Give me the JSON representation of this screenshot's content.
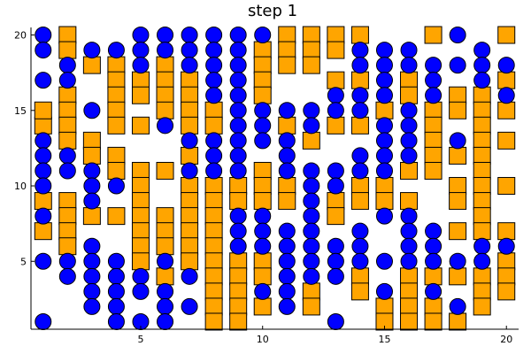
{
  "chart_data": {
    "type": "scatter",
    "title": "step 1",
    "xlabel": "",
    "ylabel": "",
    "xlim": [
      0.5,
      20.5
    ],
    "ylim": [
      0.5,
      20.5
    ],
    "xticks": [
      5,
      10,
      15,
      20
    ],
    "yticks": [
      5,
      10,
      15,
      20
    ],
    "grid": false,
    "legend": "none",
    "series": [
      {
        "marker": "square",
        "color": "#FFA500",
        "points": [
          [
            1,
            14
          ],
          [
            1,
            15
          ],
          [
            1,
            9
          ],
          [
            1,
            7
          ],
          [
            2,
            20
          ],
          [
            2,
            19
          ],
          [
            2,
            16
          ],
          [
            2,
            15
          ],
          [
            2,
            14
          ],
          [
            2,
            13
          ],
          [
            2,
            9
          ],
          [
            2,
            8
          ],
          [
            2,
            7
          ],
          [
            2,
            6
          ],
          [
            3,
            18
          ],
          [
            3,
            13
          ],
          [
            3,
            12
          ],
          [
            3,
            8
          ],
          [
            4,
            18
          ],
          [
            4,
            17
          ],
          [
            4,
            16
          ],
          [
            4,
            15
          ],
          [
            4,
            14
          ],
          [
            4,
            12
          ],
          [
            4,
            11
          ],
          [
            4,
            8
          ],
          [
            5,
            17
          ],
          [
            5,
            16
          ],
          [
            5,
            14
          ],
          [
            5,
            11
          ],
          [
            5,
            10
          ],
          [
            5,
            9
          ],
          [
            5,
            8
          ],
          [
            5,
            7
          ],
          [
            5,
            6
          ],
          [
            5,
            5
          ],
          [
            6,
            18
          ],
          [
            6,
            17
          ],
          [
            6,
            16
          ],
          [
            6,
            15
          ],
          [
            6,
            11
          ],
          [
            6,
            8
          ],
          [
            6,
            7
          ],
          [
            6,
            6
          ],
          [
            6,
            4
          ],
          [
            7,
            17
          ],
          [
            7,
            16
          ],
          [
            7,
            15
          ],
          [
            7,
            14
          ],
          [
            7,
            12
          ],
          [
            7,
            10
          ],
          [
            7,
            9
          ],
          [
            7,
            8
          ],
          [
            7,
            7
          ],
          [
            7,
            6
          ],
          [
            7,
            5
          ],
          [
            8,
            15
          ],
          [
            8,
            14
          ],
          [
            8,
            10
          ],
          [
            8,
            9
          ],
          [
            8,
            8
          ],
          [
            8,
            7
          ],
          [
            8,
            6
          ],
          [
            8,
            5
          ],
          [
            8,
            4
          ],
          [
            8,
            3
          ],
          [
            8,
            2
          ],
          [
            8,
            1
          ],
          [
            9,
            10
          ],
          [
            9,
            9
          ],
          [
            9,
            5
          ],
          [
            9,
            4
          ],
          [
            9,
            3
          ],
          [
            9,
            2
          ],
          [
            9,
            1
          ],
          [
            10,
            19
          ],
          [
            10,
            18
          ],
          [
            10,
            17
          ],
          [
            10,
            16
          ],
          [
            10,
            11
          ],
          [
            10,
            10
          ],
          [
            10,
            9
          ],
          [
            10,
            5
          ],
          [
            10,
            4
          ],
          [
            10,
            2
          ],
          [
            11,
            20
          ],
          [
            11,
            19
          ],
          [
            11,
            18
          ],
          [
            11,
            14
          ],
          [
            11,
            10
          ],
          [
            11,
            9
          ],
          [
            12,
            20
          ],
          [
            12,
            19
          ],
          [
            12,
            18
          ],
          [
            12,
            13
          ],
          [
            12,
            3
          ],
          [
            12,
            2
          ],
          [
            13,
            20
          ],
          [
            13,
            19
          ],
          [
            13,
            17
          ],
          [
            13,
            14
          ],
          [
            13,
            9
          ],
          [
            13,
            8
          ],
          [
            14,
            20
          ],
          [
            14,
            17
          ],
          [
            14,
            14
          ],
          [
            14,
            10
          ],
          [
            14,
            9
          ],
          [
            14,
            4
          ],
          [
            14,
            3
          ],
          [
            15,
            15
          ],
          [
            15,
            10
          ],
          [
            15,
            9
          ],
          [
            15,
            2
          ],
          [
            15,
            1
          ],
          [
            16,
            17
          ],
          [
            16,
            16
          ],
          [
            16,
            11
          ],
          [
            16,
            9
          ],
          [
            16,
            4
          ],
          [
            16,
            3
          ],
          [
            16,
            2
          ],
          [
            16,
            1
          ],
          [
            17,
            20
          ],
          [
            17,
            15
          ],
          [
            17,
            14
          ],
          [
            17,
            13
          ],
          [
            17,
            12
          ],
          [
            17,
            11
          ],
          [
            17,
            4
          ],
          [
            17,
            2
          ],
          [
            17,
            1
          ],
          [
            18,
            16
          ],
          [
            18,
            15
          ],
          [
            18,
            12
          ],
          [
            18,
            10
          ],
          [
            18,
            9
          ],
          [
            18,
            7
          ],
          [
            18,
            4
          ],
          [
            18,
            1
          ],
          [
            19,
            16
          ],
          [
            19,
            15
          ],
          [
            19,
            14
          ],
          [
            19,
            13
          ],
          [
            19,
            12
          ],
          [
            19,
            11
          ],
          [
            19,
            10
          ],
          [
            19,
            9
          ],
          [
            19,
            8
          ],
          [
            19,
            7
          ],
          [
            19,
            4
          ],
          [
            19,
            3
          ],
          [
            19,
            2
          ],
          [
            20,
            20
          ],
          [
            20,
            17
          ],
          [
            20,
            15
          ],
          [
            20,
            13
          ],
          [
            20,
            10
          ],
          [
            20,
            7
          ],
          [
            20,
            5
          ],
          [
            20,
            4
          ],
          [
            20,
            3
          ]
        ]
      },
      {
        "marker": "circle",
        "color": "#0000FF",
        "points": [
          [
            1,
            20
          ],
          [
            1,
            19
          ],
          [
            1,
            17
          ],
          [
            1,
            13
          ],
          [
            1,
            12
          ],
          [
            1,
            11
          ],
          [
            1,
            10
          ],
          [
            1,
            8
          ],
          [
            1,
            5
          ],
          [
            1,
            1
          ],
          [
            2,
            18
          ],
          [
            2,
            17
          ],
          [
            2,
            12
          ],
          [
            2,
            11
          ],
          [
            2,
            5
          ],
          [
            2,
            4
          ],
          [
            3,
            19
          ],
          [
            3,
            15
          ],
          [
            3,
            11
          ],
          [
            3,
            10
          ],
          [
            3,
            9
          ],
          [
            3,
            6
          ],
          [
            3,
            5
          ],
          [
            3,
            4
          ],
          [
            3,
            3
          ],
          [
            3,
            2
          ],
          [
            4,
            19
          ],
          [
            4,
            10
          ],
          [
            4,
            5
          ],
          [
            4,
            4
          ],
          [
            4,
            3
          ],
          [
            4,
            2
          ],
          [
            4,
            1
          ],
          [
            5,
            20
          ],
          [
            5,
            19
          ],
          [
            5,
            18
          ],
          [
            5,
            4
          ],
          [
            5,
            3
          ],
          [
            5,
            1
          ],
          [
            6,
            20
          ],
          [
            6,
            19
          ],
          [
            6,
            14
          ],
          [
            6,
            5
          ],
          [
            6,
            3
          ],
          [
            6,
            2
          ],
          [
            6,
            1
          ],
          [
            7,
            20
          ],
          [
            7,
            19
          ],
          [
            7,
            18
          ],
          [
            7,
            13
          ],
          [
            7,
            11
          ],
          [
            7,
            4
          ],
          [
            7,
            2
          ],
          [
            8,
            20
          ],
          [
            8,
            19
          ],
          [
            8,
            18
          ],
          [
            8,
            17
          ],
          [
            8,
            16
          ],
          [
            8,
            13
          ],
          [
            8,
            12
          ],
          [
            8,
            11
          ],
          [
            9,
            20
          ],
          [
            9,
            19
          ],
          [
            9,
            18
          ],
          [
            9,
            17
          ],
          [
            9,
            16
          ],
          [
            9,
            15
          ],
          [
            9,
            14
          ],
          [
            9,
            13
          ],
          [
            9,
            12
          ],
          [
            9,
            11
          ],
          [
            9,
            8
          ],
          [
            9,
            7
          ],
          [
            9,
            6
          ],
          [
            10,
            20
          ],
          [
            10,
            15
          ],
          [
            10,
            14
          ],
          [
            10,
            13
          ],
          [
            10,
            8
          ],
          [
            10,
            7
          ],
          [
            10,
            6
          ],
          [
            10,
            3
          ],
          [
            11,
            15
          ],
          [
            11,
            13
          ],
          [
            11,
            12
          ],
          [
            11,
            11
          ],
          [
            11,
            7
          ],
          [
            11,
            6
          ],
          [
            11,
            5
          ],
          [
            11,
            4
          ],
          [
            11,
            3
          ],
          [
            11,
            2
          ],
          [
            12,
            15
          ],
          [
            12,
            14
          ],
          [
            12,
            11
          ],
          [
            12,
            10
          ],
          [
            12,
            9
          ],
          [
            12,
            8
          ],
          [
            12,
            7
          ],
          [
            12,
            6
          ],
          [
            12,
            5
          ],
          [
            12,
            4
          ],
          [
            13,
            16
          ],
          [
            13,
            15
          ],
          [
            13,
            11
          ],
          [
            13,
            10
          ],
          [
            13,
            6
          ],
          [
            13,
            5
          ],
          [
            13,
            4
          ],
          [
            13,
            1
          ],
          [
            14,
            19
          ],
          [
            14,
            18
          ],
          [
            14,
            16
          ],
          [
            14,
            15
          ],
          [
            14,
            12
          ],
          [
            14,
            11
          ],
          [
            14,
            7
          ],
          [
            14,
            6
          ],
          [
            14,
            5
          ],
          [
            15,
            19
          ],
          [
            15,
            18
          ],
          [
            15,
            17
          ],
          [
            15,
            16
          ],
          [
            15,
            14
          ],
          [
            15,
            13
          ],
          [
            15,
            12
          ],
          [
            15,
            11
          ],
          [
            15,
            8
          ],
          [
            15,
            5
          ],
          [
            15,
            3
          ],
          [
            16,
            19
          ],
          [
            16,
            18
          ],
          [
            16,
            15
          ],
          [
            16,
            14
          ],
          [
            16,
            13
          ],
          [
            16,
            12
          ],
          [
            16,
            8
          ],
          [
            16,
            7
          ],
          [
            16,
            6
          ],
          [
            16,
            5
          ],
          [
            17,
            18
          ],
          [
            17,
            17
          ],
          [
            17,
            16
          ],
          [
            17,
            7
          ],
          [
            17,
            6
          ],
          [
            17,
            5
          ],
          [
            17,
            3
          ],
          [
            18,
            20
          ],
          [
            18,
            18
          ],
          [
            18,
            13
          ],
          [
            18,
            5
          ],
          [
            18,
            2
          ],
          [
            19,
            19
          ],
          [
            19,
            18
          ],
          [
            19,
            17
          ],
          [
            19,
            6
          ],
          [
            19,
            5
          ],
          [
            20,
            18
          ],
          [
            20,
            16
          ],
          [
            20,
            6
          ]
        ]
      }
    ]
  }
}
